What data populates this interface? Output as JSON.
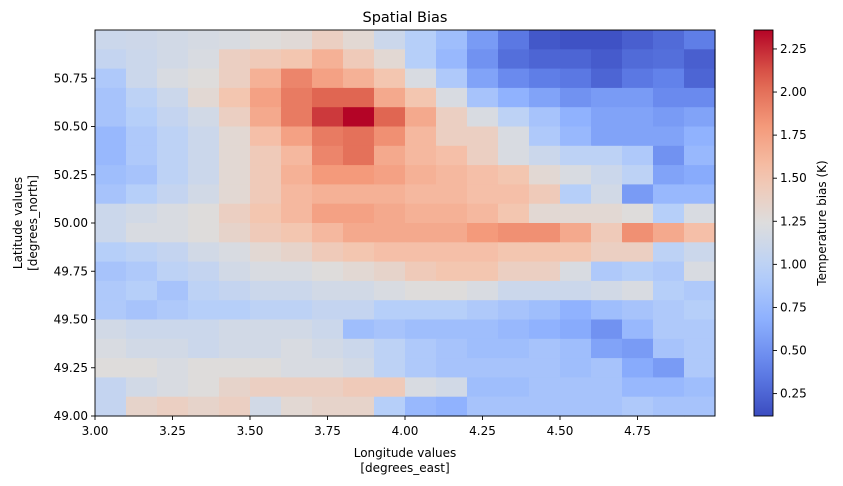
{
  "chart_data": {
    "type": "heatmap",
    "title": "Spatial Bias",
    "xlabel": [
      "Longitude values",
      "[degrees_east]"
    ],
    "ylabel": [
      "Latitude values",
      "[degrees_north]"
    ],
    "colorbar_label": "Temperature bias (K)",
    "colormap": "coolwarm",
    "xlim": [
      3.0,
      5.0
    ],
    "ylim": [
      49.0,
      51.0
    ],
    "x_ticks": [
      3.0,
      3.25,
      3.5,
      3.75,
      4.0,
      4.25,
      4.5,
      4.75
    ],
    "x_tick_labels": [
      "3.00",
      "3.25",
      "3.50",
      "3.75",
      "4.00",
      "4.25",
      "4.50",
      "4.75"
    ],
    "y_ticks": [
      49.0,
      49.25,
      49.5,
      49.75,
      50.0,
      50.25,
      50.5,
      50.75
    ],
    "y_tick_labels": [
      "49.00",
      "49.25",
      "49.50",
      "49.75",
      "50.00",
      "50.25",
      "50.50",
      "50.75"
    ],
    "color_range": [
      0.12,
      2.36
    ],
    "colorbar_ticks": [
      0.25,
      0.5,
      0.75,
      1.0,
      1.25,
      1.5,
      1.75,
      2.0,
      2.25
    ],
    "colorbar_tick_labels": [
      "0.25",
      "0.50",
      "0.75",
      "1.00",
      "1.25",
      "1.50",
      "1.75",
      "2.00",
      "2.25"
    ],
    "grid": false,
    "legend": "colorbar-right",
    "x_centers": [
      3.05,
      3.15,
      3.25,
      3.35,
      3.45,
      3.55,
      3.65,
      3.75,
      3.85,
      3.95,
      4.05,
      4.15,
      4.25,
      4.35,
      4.45,
      4.55,
      4.65,
      4.75,
      4.85,
      4.95
    ],
    "y_centers": [
      50.95,
      50.85,
      50.75,
      50.65,
      50.55,
      50.45,
      50.35,
      50.25,
      50.15,
      50.05,
      49.95,
      49.85,
      49.75,
      49.65,
      49.55,
      49.45,
      49.35,
      49.25,
      49.15,
      49.05
    ],
    "values": [
      [
        1.1,
        1.12,
        1.15,
        1.18,
        1.2,
        1.25,
        1.28,
        1.4,
        1.3,
        1.1,
        0.95,
        0.8,
        0.55,
        0.35,
        0.18,
        0.15,
        0.15,
        0.22,
        0.28,
        0.38
      ],
      [
        1.05,
        1.1,
        1.15,
        1.2,
        1.4,
        1.45,
        1.5,
        1.65,
        1.45,
        1.3,
        0.95,
        0.75,
        0.5,
        0.3,
        0.25,
        0.25,
        0.2,
        0.28,
        0.3,
        0.22
      ],
      [
        0.9,
        1.1,
        1.2,
        1.25,
        1.4,
        1.65,
        1.9,
        1.75,
        1.65,
        1.5,
        1.2,
        0.9,
        0.6,
        0.45,
        0.38,
        0.35,
        0.25,
        0.35,
        0.4,
        0.25
      ],
      [
        0.85,
        1.0,
        1.1,
        1.3,
        1.5,
        1.75,
        1.95,
        2.05,
        2.05,
        1.7,
        1.5,
        1.2,
        0.85,
        0.7,
        0.6,
        0.5,
        0.55,
        0.55,
        0.45,
        0.45
      ],
      [
        0.85,
        0.95,
        1.05,
        1.15,
        1.4,
        1.7,
        1.95,
        2.2,
        2.36,
        2.05,
        1.7,
        1.4,
        1.2,
        1.0,
        0.85,
        0.7,
        0.6,
        0.6,
        0.55,
        0.6
      ],
      [
        0.75,
        0.9,
        1.0,
        1.1,
        1.3,
        1.55,
        1.75,
        1.95,
        2.0,
        1.85,
        1.6,
        1.4,
        1.4,
        1.2,
        0.9,
        0.75,
        0.6,
        0.6,
        0.6,
        0.7
      ],
      [
        0.75,
        0.9,
        1.0,
        1.1,
        1.3,
        1.45,
        1.6,
        1.9,
        2.0,
        1.7,
        1.6,
        1.55,
        1.4,
        1.2,
        1.1,
        1.0,
        1.0,
        0.9,
        0.5,
        0.75
      ],
      [
        0.8,
        0.85,
        1.0,
        1.1,
        1.3,
        1.45,
        1.65,
        1.8,
        1.8,
        1.75,
        1.65,
        1.6,
        1.55,
        1.5,
        1.3,
        1.2,
        1.1,
        1.0,
        0.6,
        0.65
      ],
      [
        0.85,
        0.95,
        1.05,
        1.15,
        1.3,
        1.45,
        1.6,
        1.65,
        1.65,
        1.65,
        1.6,
        1.6,
        1.55,
        1.55,
        1.45,
        0.95,
        1.15,
        0.55,
        0.75,
        0.75
      ],
      [
        1.1,
        1.15,
        1.2,
        1.25,
        1.4,
        1.5,
        1.6,
        1.75,
        1.75,
        1.7,
        1.65,
        1.65,
        1.6,
        1.5,
        1.3,
        1.3,
        1.3,
        1.25,
        0.95,
        1.2
      ],
      [
        1.1,
        1.2,
        1.2,
        1.25,
        1.35,
        1.45,
        1.5,
        1.6,
        1.7,
        1.7,
        1.7,
        1.7,
        1.8,
        1.85,
        1.85,
        1.7,
        1.45,
        1.85,
        1.7,
        1.55
      ],
      [
        0.95,
        1.0,
        1.05,
        1.15,
        1.2,
        1.3,
        1.35,
        1.45,
        1.5,
        1.55,
        1.55,
        1.55,
        1.55,
        1.5,
        1.5,
        1.5,
        1.4,
        1.4,
        1.0,
        1.1
      ],
      [
        0.85,
        0.9,
        1.0,
        1.05,
        1.15,
        1.2,
        1.2,
        1.25,
        1.3,
        1.35,
        1.45,
        1.5,
        1.5,
        1.4,
        1.4,
        1.2,
        0.9,
        0.95,
        0.9,
        1.2
      ],
      [
        0.9,
        0.95,
        0.85,
        1.0,
        1.05,
        1.1,
        1.1,
        1.15,
        1.15,
        1.2,
        1.25,
        1.25,
        1.2,
        1.1,
        1.1,
        1.1,
        1.15,
        1.2,
        0.95,
        0.9
      ],
      [
        0.9,
        0.85,
        0.9,
        0.95,
        0.95,
        1.0,
        1.0,
        1.05,
        1.05,
        0.95,
        0.95,
        0.95,
        0.9,
        0.85,
        0.8,
        0.7,
        0.8,
        0.85,
        0.9,
        0.95
      ],
      [
        1.15,
        1.1,
        1.1,
        1.1,
        1.15,
        1.15,
        1.15,
        1.1,
        0.8,
        0.85,
        0.8,
        0.8,
        0.8,
        0.75,
        0.7,
        0.65,
        0.5,
        0.75,
        0.9,
        0.9
      ],
      [
        1.2,
        1.15,
        1.15,
        1.1,
        1.15,
        1.15,
        1.2,
        1.15,
        1.1,
        1.0,
        0.9,
        0.85,
        0.8,
        0.8,
        0.85,
        0.8,
        0.6,
        0.55,
        0.85,
        0.9
      ],
      [
        1.25,
        1.25,
        1.2,
        1.25,
        1.25,
        1.25,
        1.2,
        1.2,
        1.15,
        1.0,
        0.9,
        0.85,
        0.85,
        0.85,
        0.85,
        0.8,
        0.85,
        0.65,
        0.55,
        0.9
      ],
      [
        1.05,
        1.15,
        1.2,
        1.25,
        1.35,
        1.4,
        1.4,
        1.4,
        1.45,
        1.45,
        1.2,
        1.15,
        0.8,
        0.8,
        0.85,
        0.85,
        0.85,
        0.75,
        0.75,
        0.8
      ],
      [
        1.05,
        1.35,
        1.4,
        1.35,
        1.4,
        1.15,
        1.3,
        1.35,
        1.35,
        0.95,
        0.75,
        0.7,
        0.85,
        0.85,
        0.85,
        0.85,
        0.85,
        0.9,
        0.85,
        0.85
      ]
    ]
  }
}
